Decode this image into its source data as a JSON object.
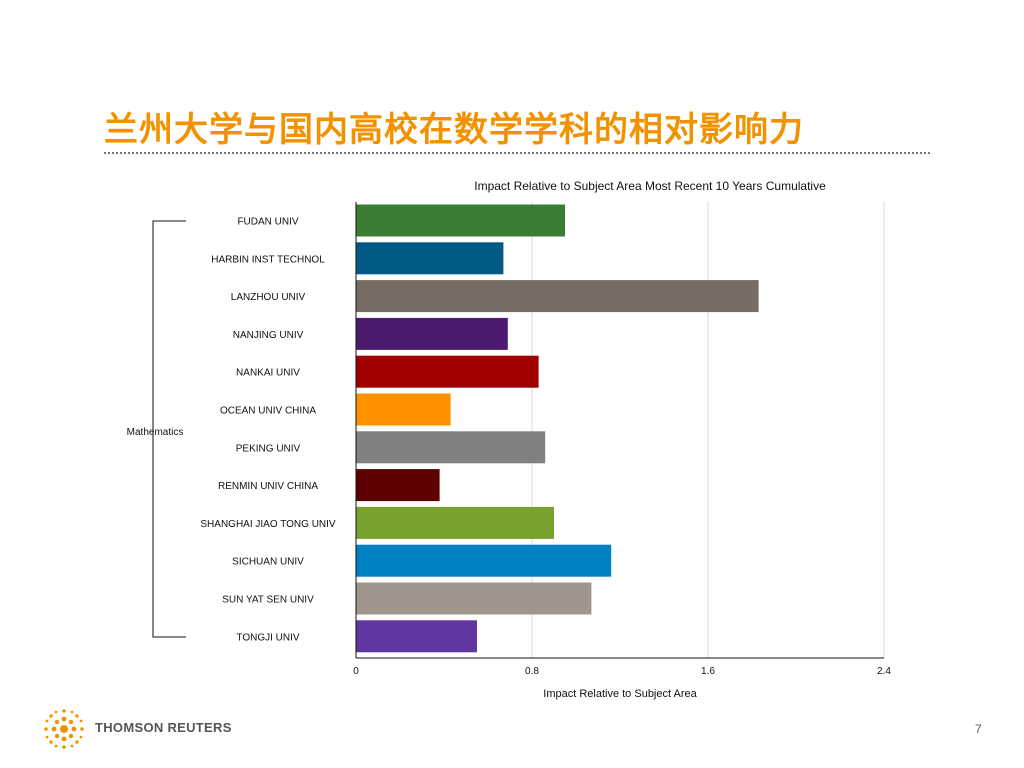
{
  "slide": {
    "title": "兰州大学与国内高校在数学学科的相对影响力",
    "brand": "THOMSON REUTERS",
    "page_number": "7"
  },
  "chart_data": {
    "type": "bar",
    "orientation": "horizontal",
    "title": "Impact Relative to Subject Area Most Recent 10 Years Cumulative",
    "xlabel": "Impact Relative to Subject Area",
    "group_label": "Mathematics",
    "categories": [
      "FUDAN UNIV",
      "HARBIN INST TECHNOL",
      "LANZHOU UNIV",
      "NANJING UNIV",
      "NANKAI UNIV",
      "OCEAN UNIV CHINA",
      "PEKING UNIV",
      "RENMIN UNIV CHINA",
      "SHANGHAI JIAO TONG UNIV",
      "SICHUAN UNIV",
      "SUN YAT SEN UNIV",
      "TONGJI UNIV"
    ],
    "values": [
      0.95,
      0.67,
      1.83,
      0.69,
      0.83,
      0.43,
      0.86,
      0.38,
      0.9,
      1.16,
      1.07,
      0.55
    ],
    "colors": [
      "#3a7d32",
      "#005a85",
      "#786c62",
      "#4c1a6e",
      "#a00000",
      "#ff9000",
      "#808080",
      "#5c0000",
      "#78a12f",
      "#0081c4",
      "#a0968c",
      "#6036a0"
    ],
    "xticks": [
      "0",
      "0.8",
      "1.6",
      "2.4"
    ],
    "xlim": [
      0,
      2.4
    ],
    "grid": true
  }
}
